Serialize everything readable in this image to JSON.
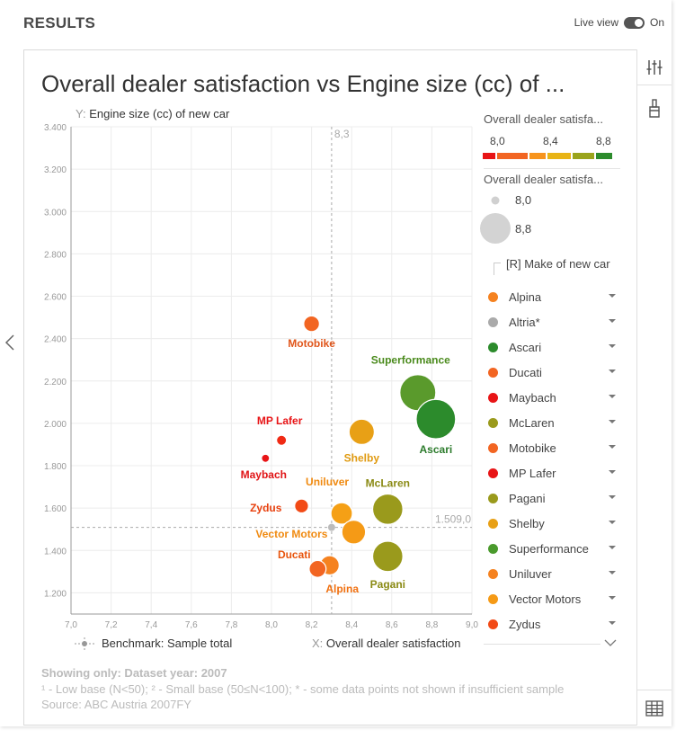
{
  "header": {
    "title": "RESULTS",
    "live_label": "Live view",
    "toggle_state": "On"
  },
  "chart_title": "Overall dealer satisfaction vs Engine size (cc) of ...",
  "y_axis": {
    "prefix": "Y:",
    "label": "Engine size (cc) of new car"
  },
  "x_axis": {
    "prefix": "X:",
    "label": "Overall dealer satisfaction"
  },
  "benchmark_label": "Benchmark: Sample total",
  "benchmark_values": {
    "x_text": "8,3",
    "y_text": "1.509,0"
  },
  "color_legend": {
    "title": "Overall dealer satisfa...",
    "ticks": [
      "8,0",
      "8,4",
      "8,8"
    ],
    "colors": [
      "#e81416",
      "#f26522",
      "#f7941d",
      "#e8b416",
      "#9aa41c",
      "#2c8b2c"
    ]
  },
  "size_legend": {
    "title": "Overall dealer satisfa...",
    "small": "8,0",
    "large": "8,8"
  },
  "make_legend": {
    "title": "[R] Make of new car",
    "items": [
      {
        "label": "Alpina",
        "color": "#f58220"
      },
      {
        "label": "Altria*",
        "color": "#aaaaaa"
      },
      {
        "label": "Ascari",
        "color": "#2c8b2c"
      },
      {
        "label": "Ducati",
        "color": "#f26522"
      },
      {
        "label": "Maybach",
        "color": "#e81416"
      },
      {
        "label": "McLaren",
        "color": "#9a9a1c"
      },
      {
        "label": "Motobike",
        "color": "#f26522"
      },
      {
        "label": "MP Lafer",
        "color": "#e81416"
      },
      {
        "label": "Pagani",
        "color": "#9a9a1c"
      },
      {
        "label": "Shelby",
        "color": "#e8a016"
      },
      {
        "label": "Superformance",
        "color": "#4a9a2c"
      },
      {
        "label": "Uniluver",
        "color": "#f58220"
      },
      {
        "label": "Vector Motors",
        "color": "#f59a16"
      },
      {
        "label": "Zydus",
        "color": "#f24a16"
      }
    ]
  },
  "footer": {
    "filter": "Showing only: Dataset year: 2007",
    "notes": "¹ - Low base (N<50);   ² - Small base (50≤N<100);   * - some data points not shown if insufficient sample",
    "source": "Source: ABC Austria 2007FY"
  },
  "chart_data": {
    "type": "scatter",
    "xlabel": "Overall dealer satisfaction",
    "ylabel": "Engine size (cc) of new car",
    "xlim": [
      7.0,
      9.0
    ],
    "ylim": [
      1100,
      3400
    ],
    "x_ticks": [
      "7,0",
      "7,2",
      "7,4",
      "7,6",
      "7,8",
      "8,0",
      "8,2",
      "8,4",
      "8,6",
      "8,8",
      "9,0"
    ],
    "y_ticks": [
      "1.200",
      "1.400",
      "1.600",
      "1.800",
      "2.000",
      "2.200",
      "2.400",
      "2.600",
      "2.800",
      "3.000",
      "3.200",
      "3.400"
    ],
    "benchmark": {
      "x": 8.3,
      "y": 1509.0
    },
    "points": [
      {
        "name": "Motobike",
        "x": 8.2,
        "y": 2470,
        "color": "#f26522",
        "label_color": "#e0551a"
      },
      {
        "name": "Superformance",
        "x": 8.73,
        "y": 2145,
        "color": "#5a9a2c",
        "label_color": "#4a8a1c"
      },
      {
        "name": "Ascari",
        "x": 8.82,
        "y": 2020,
        "color": "#2c8b2c",
        "label_color": "#2c7b2c"
      },
      {
        "name": "MP Lafer",
        "x": 8.05,
        "y": 1920,
        "color": "#f02a14",
        "label_color": "#e81416"
      },
      {
        "name": "Maybach",
        "x": 7.97,
        "y": 1835,
        "color": "#e81416",
        "label_color": "#e01416"
      },
      {
        "name": "Shelby",
        "x": 8.45,
        "y": 1960,
        "color": "#e8a016",
        "label_color": "#e09a10"
      },
      {
        "name": "Uniluver",
        "x": 8.35,
        "y": 1575,
        "color": "#f5a016",
        "label_color": "#f08a10"
      },
      {
        "name": "McLaren",
        "x": 8.58,
        "y": 1595,
        "color": "#9a9a1c",
        "label_color": "#8a8a14"
      },
      {
        "name": "Zydus",
        "x": 8.15,
        "y": 1610,
        "color": "#f24a16",
        "label_color": "#e8400e"
      },
      {
        "name": "Vector Motors",
        "x": 8.41,
        "y": 1487,
        "color": "#f59a16",
        "label_color": "#f08a10"
      },
      {
        "name": "Alpina",
        "x": 8.29,
        "y": 1330,
        "color": "#f58220",
        "label_color": "#f07010"
      },
      {
        "name": "Ducati",
        "x": 8.23,
        "y": 1313,
        "color": "#f26522",
        "label_color": "#e8550e"
      },
      {
        "name": "Pagani",
        "x": 8.58,
        "y": 1372,
        "color": "#9a9a1c",
        "label_color": "#8a8a14"
      }
    ]
  }
}
